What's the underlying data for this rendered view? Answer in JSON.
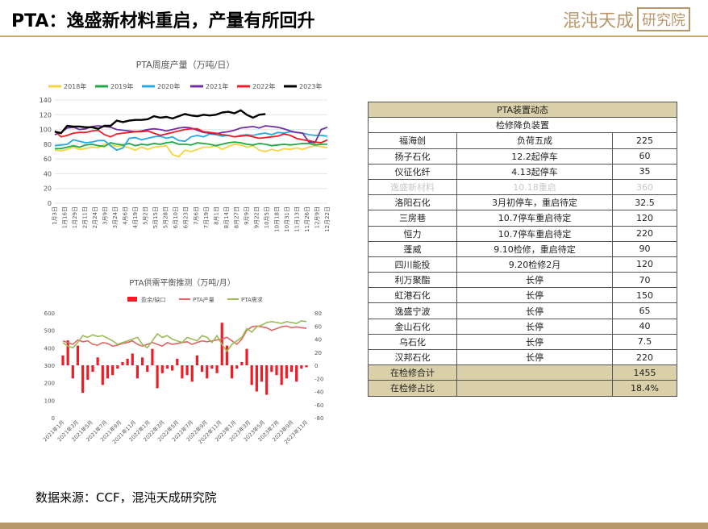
{
  "header": {
    "title": "PTA：逸盛新材料重启，产量有所回升",
    "logo_text": "混沌天成",
    "logo_box": "研究院"
  },
  "footer": {
    "source": "数据来源：CCF，混沌天成研究院"
  },
  "colors": {
    "accent": "#b8976a",
    "table_header": "#d9cfa8"
  },
  "chart_data": [
    {
      "type": "line",
      "title": "PTA周度产量（万吨/日）",
      "ylim": [
        0,
        140
      ],
      "yticks": [
        0,
        20,
        40,
        60,
        80,
        100,
        120,
        140
      ],
      "x_tick_labels": [
        "1月3日",
        "1月16日",
        "1月29日",
        "2月11日",
        "2月24日",
        "3月9日",
        "3月24日",
        "4月6日",
        "4月19日",
        "5月2日",
        "5月15日",
        "5月28日",
        "6月10日",
        "6月23日",
        "7月6日",
        "7月19日",
        "8月1日",
        "8月14日",
        "8月27日",
        "9月9日",
        "9月22日",
        "10月5日",
        "10月18日",
        "10月31日",
        "11月13日",
        "11月26日",
        "12月9日",
        "12月22日"
      ],
      "grid": true,
      "legend": "top",
      "series": [
        {
          "name": "2018年",
          "color": "#f5d442",
          "values": [
            72,
            71,
            73,
            76,
            73,
            74,
            76,
            75,
            80,
            79,
            77,
            78,
            75,
            72,
            76,
            73,
            76,
            77,
            78,
            66,
            63,
            72,
            70,
            73,
            76,
            76,
            78,
            73,
            77,
            80,
            79,
            76,
            78,
            72,
            70,
            73,
            71,
            74,
            73,
            75,
            73,
            76,
            78,
            77,
            75
          ]
        },
        {
          "name": "2019年",
          "color": "#22a845",
          "values": [
            74,
            74,
            76,
            78,
            76,
            79,
            80,
            78,
            77,
            82,
            80,
            79,
            81,
            78,
            80,
            79,
            81,
            80,
            82,
            83,
            80,
            80,
            79,
            82,
            81,
            80,
            78,
            80,
            82,
            83,
            82,
            80,
            79,
            81,
            80,
            78,
            79,
            80,
            79,
            80,
            81,
            81,
            79,
            80,
            80
          ]
        },
        {
          "name": "2020年",
          "color": "#27a9e1",
          "values": [
            78,
            79,
            80,
            86,
            84,
            82,
            83,
            85,
            85,
            78,
            72,
            75,
            88,
            89,
            86,
            88,
            90,
            91,
            88,
            90,
            85,
            84,
            90,
            92,
            90,
            94,
            93,
            91,
            92,
            90,
            92,
            93,
            92,
            94,
            95,
            93,
            96,
            95,
            97,
            96,
            95,
            93,
            92,
            92,
            91
          ]
        },
        {
          "name": "2021年",
          "color": "#7030a0",
          "values": [
            93,
            96,
            102,
            103,
            100,
            101,
            104,
            105,
            104,
            103,
            100,
            99,
            98,
            97,
            98,
            100,
            101,
            100,
            98,
            100,
            102,
            103,
            102,
            99,
            96,
            95,
            94,
            96,
            97,
            99,
            102,
            103,
            104,
            102,
            105,
            104,
            103,
            101,
            98,
            96,
            95,
            83,
            82,
            100,
            103
          ]
        },
        {
          "name": "2022年",
          "color": "#ee1c25",
          "values": [
            98,
            90,
            92,
            95,
            96,
            96,
            98,
            99,
            93,
            90,
            94,
            95,
            96,
            97,
            97,
            98,
            95,
            92,
            94,
            96,
            98,
            100,
            101,
            101,
            97,
            96,
            95,
            93,
            92,
            90,
            91,
            92,
            90,
            88,
            89,
            90,
            91,
            94,
            92,
            88,
            86,
            85,
            83,
            82,
            86
          ]
        },
        {
          "name": "2023年",
          "color": "#000000",
          "values": [
            97,
            95,
            105,
            104,
            104,
            103,
            103,
            101,
            105,
            105,
            112,
            110,
            112,
            113,
            113,
            114,
            118,
            116,
            117,
            115,
            118,
            121,
            119,
            118,
            120,
            119,
            120,
            123,
            124,
            122,
            126,
            120,
            116,
            120,
            121
          ]
        }
      ]
    },
    {
      "type": "bar",
      "title": "PTA供需平衡推测（万吨/月）",
      "legend": "top",
      "x_tick_labels": [
        "2021年1月",
        "2021年3月",
        "2021年5月",
        "2021年7月",
        "2021年9月",
        "2021年11月",
        "2022年1月",
        "2022年3月",
        "2022年5月",
        "2022年7月",
        "2022年9月",
        "2022年11月",
        "2023年1月",
        "2023年3月",
        "2023年5月",
        "2023年7月",
        "2023年9月",
        "2023年11月"
      ],
      "left_axis": {
        "ylim": [
          0,
          600
        ],
        "yticks": [
          0,
          100,
          200,
          300,
          400,
          500,
          600
        ]
      },
      "right_axis": {
        "ylim": [
          -80,
          80
        ],
        "yticks": [
          -80,
          -60,
          -40,
          -20,
          0,
          20,
          40,
          60,
          80
        ]
      },
      "series": [
        {
          "name": "盈余/缺口",
          "color": "#ee1c25",
          "axis": "right",
          "values": [
            15,
            38,
            -20,
            30,
            -42,
            -22,
            -10,
            12,
            -30,
            -20,
            -15,
            -5,
            5,
            10,
            18,
            -20,
            12,
            -10,
            25,
            -35,
            -12,
            -5,
            -8,
            10,
            -20,
            -15,
            -25,
            15,
            -10,
            -20,
            -5,
            -12,
            65,
            30,
            -20,
            -5,
            5,
            25,
            -30,
            -40,
            -25,
            -45,
            -10,
            -15,
            -30,
            -20,
            -10,
            -25,
            -5,
            -3
          ]
        },
        {
          "name": "PTA产量",
          "color": "#e06666",
          "axis": "left",
          "values": [
            440,
            430,
            420,
            445,
            435,
            440,
            420,
            415,
            430,
            425,
            410,
            415,
            425,
            430,
            440,
            420,
            410,
            420,
            430,
            420,
            410,
            430,
            420,
            425,
            430,
            435,
            420,
            430,
            440,
            435,
            440,
            445,
            450,
            460,
            440,
            420,
            450,
            500,
            520,
            525,
            520,
            515,
            500,
            510,
            520,
            525,
            515,
            520,
            515,
            512
          ]
        },
        {
          "name": "PTA需求",
          "color": "#9bbb59",
          "axis": "left",
          "values": [
            430,
            410,
            400,
            430,
            470,
            460,
            475,
            465,
            470,
            455,
            440,
            420,
            430,
            440,
            450,
            460,
            420,
            400,
            440,
            480,
            460,
            470,
            450,
            440,
            430,
            460,
            450,
            440,
            470,
            460,
            430,
            470,
            420,
            380,
            420,
            440,
            460,
            510,
            490,
            520,
            530,
            545,
            550,
            545,
            540,
            550,
            545,
            540,
            555,
            550
          ]
        }
      ]
    }
  ],
  "table": {
    "title": "PTA装置动态",
    "subtitle": "检修降负装置",
    "rows": [
      {
        "name": "福海创",
        "status": "负荷五成",
        "capacity": "225"
      },
      {
        "name": "扬子石化",
        "status": "12.2起停车",
        "capacity": "60"
      },
      {
        "name": "仪征化纤",
        "status": "4.13起停车",
        "capacity": "35"
      },
      {
        "name": "逸盛新材料",
        "status": "10.18重启",
        "capacity": "360"
      },
      {
        "name": "洛阳石化",
        "status": "3月初停车，重启待定",
        "capacity": "32.5"
      },
      {
        "name": "三房巷",
        "status": "10.7停车重启待定",
        "capacity": "120"
      },
      {
        "name": "恒力",
        "status": "10.7停车重启待定",
        "capacity": "220"
      },
      {
        "name": "蓬威",
        "status": "9.10检修，重启待定",
        "capacity": "90"
      },
      {
        "name": "四川能投",
        "status": "9.20检修2月",
        "capacity": "120"
      },
      {
        "name": "利万聚酯",
        "status": "长停",
        "capacity": "70"
      },
      {
        "name": "虹港石化",
        "status": "长停",
        "capacity": "150"
      },
      {
        "name": "逸盛宁波",
        "status": "长停",
        "capacity": "65"
      },
      {
        "name": "金山石化",
        "status": "长停",
        "capacity": "40"
      },
      {
        "name": "乌石化",
        "status": "长停",
        "capacity": "7.5"
      },
      {
        "name": "汉邦石化",
        "status": "长停",
        "capacity": "220"
      }
    ],
    "total_label": "在检修合计",
    "total_value": "1455",
    "ratio_label": "在检修占比",
    "ratio_value": "18.4%"
  }
}
